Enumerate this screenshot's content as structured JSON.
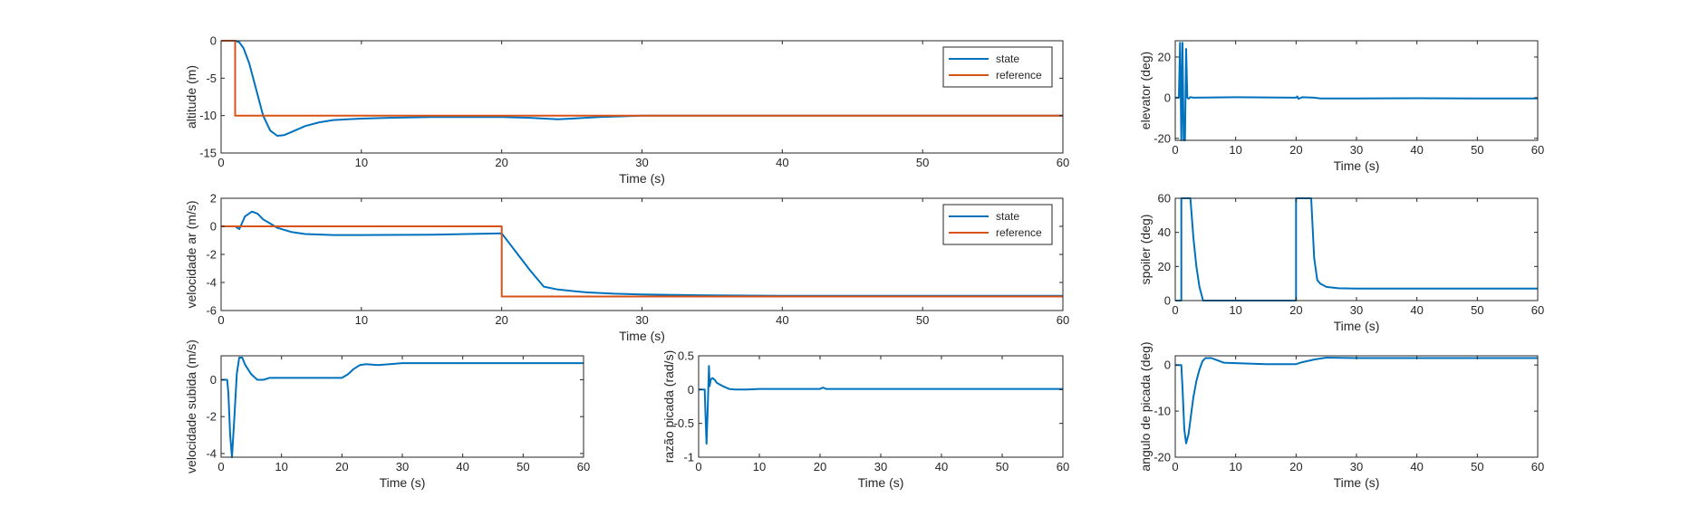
{
  "figure": {
    "background": "#ffffff"
  },
  "colors": {
    "state": "#0072bd",
    "reference": "#d95319",
    "axis": "#262626"
  },
  "chart_data": [
    {
      "id": "altitude",
      "type": "line",
      "xlabel": "Time (s)",
      "ylabel": "altitude (m)",
      "xlim": [
        0,
        60
      ],
      "ylim": [
        -15,
        0
      ],
      "xticks": [
        0,
        10,
        20,
        30,
        40,
        50,
        60
      ],
      "yticks": [
        -15,
        -10,
        -5,
        0
      ],
      "legend": {
        "position": "top-right",
        "entries": [
          "state",
          "reference"
        ]
      },
      "series": [
        {
          "name": "state",
          "color": "#0072bd",
          "x": [
            0,
            1,
            1.3,
            1.6,
            2,
            2.5,
            3,
            3.5,
            4,
            4.5,
            5,
            6,
            7,
            8,
            10,
            12,
            15,
            20,
            22,
            24,
            25,
            27,
            30,
            40,
            60
          ],
          "y": [
            0,
            0,
            -0.2,
            -1,
            -3,
            -6.5,
            -10,
            -12,
            -12.7,
            -12.6,
            -12.2,
            -11.4,
            -10.9,
            -10.6,
            -10.4,
            -10.3,
            -10.2,
            -10.2,
            -10.3,
            -10.5,
            -10.4,
            -10.2,
            -10,
            -10,
            -10
          ]
        },
        {
          "name": "reference",
          "color": "#d95319",
          "x": [
            0,
            1,
            1,
            60
          ],
          "y": [
            0,
            0,
            -10,
            -10
          ]
        }
      ]
    },
    {
      "id": "airspeed",
      "type": "line",
      "xlabel": "Time (s)",
      "ylabel": "velocidade ar (m/s)",
      "xlim": [
        0,
        60
      ],
      "ylim": [
        -6,
        2
      ],
      "xticks": [
        0,
        10,
        20,
        30,
        40,
        50,
        60
      ],
      "yticks": [
        -6,
        -4,
        -2,
        0,
        2
      ],
      "legend": {
        "position": "top-right",
        "entries": [
          "state",
          "reference"
        ]
      },
      "series": [
        {
          "name": "state",
          "color": "#0072bd",
          "x": [
            1,
            1.3,
            1.7,
            2.2,
            2.6,
            3,
            3.5,
            4,
            5,
            6,
            8,
            10,
            15,
            20,
            21,
            22,
            23,
            24,
            26,
            28,
            30,
            35,
            40,
            60
          ],
          "y": [
            0,
            -0.2,
            0.7,
            1.05,
            0.9,
            0.5,
            0.2,
            -0.1,
            -0.4,
            -0.55,
            -0.62,
            -0.62,
            -0.6,
            -0.5,
            -1.8,
            -3.1,
            -4.3,
            -4.5,
            -4.7,
            -4.8,
            -4.85,
            -4.92,
            -4.95,
            -4.95
          ]
        },
        {
          "name": "reference",
          "color": "#d95319",
          "x": [
            0,
            20,
            20,
            60
          ],
          "y": [
            0,
            0,
            -5,
            -5
          ]
        }
      ]
    },
    {
      "id": "climb",
      "type": "line",
      "xlabel": "Time (s)",
      "ylabel": "velocidade subida (m/s)",
      "xlim": [
        0,
        60
      ],
      "ylim": [
        -4.2,
        1.3
      ],
      "xticks": [
        0,
        10,
        20,
        30,
        40,
        50,
        60
      ],
      "yticks": [
        -4,
        -2,
        0
      ],
      "series": [
        {
          "name": "",
          "color": "#0072bd",
          "x": [
            0,
            1,
            1.2,
            1.5,
            1.8,
            2.2,
            2.6,
            3,
            3.5,
            4,
            5,
            6,
            7,
            8,
            10,
            15,
            20,
            21,
            22,
            23,
            24,
            26,
            30,
            60
          ],
          "y": [
            0,
            0,
            -0.7,
            -3,
            -4.2,
            -2,
            0.3,
            1.2,
            1.2,
            0.8,
            0.3,
            0,
            0,
            0.1,
            0.1,
            0.1,
            0.1,
            0.3,
            0.6,
            0.8,
            0.85,
            0.8,
            0.9,
            0.9
          ]
        }
      ]
    },
    {
      "id": "pitchrate",
      "type": "line",
      "xlabel": "Time (s)",
      "ylabel": "razão picada (rad/s)",
      "xlim": [
        0,
        60
      ],
      "ylim": [
        -1,
        0.5
      ],
      "xticks": [
        0,
        10,
        20,
        30,
        40,
        50,
        60
      ],
      "yticks": [
        -1,
        -0.5,
        0,
        0.5
      ],
      "series": [
        {
          "name": "",
          "color": "#0072bd",
          "x": [
            0,
            1,
            1.1,
            1.3,
            1.5,
            1.7,
            1.8,
            2,
            2.3,
            2.7,
            3,
            4,
            5,
            6,
            8,
            10,
            20,
            20.5,
            21,
            30,
            60
          ],
          "y": [
            0,
            0,
            -0.3,
            -0.8,
            -0.3,
            0.35,
            0.05,
            0.15,
            0.17,
            0.14,
            0.1,
            0.05,
            0.01,
            0,
            0,
            0.01,
            0.01,
            0.03,
            0.01,
            0.01,
            0.01
          ]
        }
      ]
    },
    {
      "id": "elevator",
      "type": "line",
      "xlabel": "Time (s)",
      "ylabel": "elevator (deg)",
      "xlim": [
        0,
        60
      ],
      "ylim": [
        -21,
        28
      ],
      "xticks": [
        0,
        10,
        20,
        30,
        40,
        50,
        60
      ],
      "yticks": [
        -20,
        0,
        20
      ],
      "series": [
        {
          "name": "",
          "color": "#0072bd",
          "x": [
            0,
            0.6,
            0.8,
            1,
            1.2,
            1.4,
            1.6,
            1.8,
            2,
            2.2,
            2.5,
            3,
            10,
            20,
            20.2,
            20.4,
            21,
            23,
            24,
            30,
            40,
            50,
            60
          ],
          "y": [
            0,
            0,
            27,
            -21,
            27,
            -21,
            -21,
            24,
            0,
            -0.5,
            0.3,
            0,
            0.2,
            0,
            0.6,
            -0.6,
            0.2,
            0,
            -0.4,
            -0.4,
            -0.3,
            -0.4,
            -0.4
          ]
        }
      ]
    },
    {
      "id": "spoiler",
      "type": "line",
      "xlabel": "Time (s)",
      "ylabel": "spoiler (deg)",
      "xlim": [
        0,
        60
      ],
      "ylim": [
        0,
        60
      ],
      "xticks": [
        0,
        10,
        20,
        30,
        40,
        50,
        60
      ],
      "yticks": [
        0,
        20,
        40,
        60
      ],
      "series": [
        {
          "name": "",
          "color": "#0072bd",
          "x": [
            0,
            1,
            1,
            2.5,
            3,
            3.5,
            4,
            4.6,
            20,
            20,
            22.5,
            23,
            23.5,
            24,
            25,
            27,
            30,
            35,
            60
          ],
          "y": [
            0,
            0,
            60,
            60,
            37,
            20,
            8,
            0,
            0,
            60,
            60,
            25,
            12,
            10,
            8,
            7.2,
            7,
            7,
            7
          ]
        }
      ]
    },
    {
      "id": "pitchangle",
      "type": "line",
      "xlabel": "Time (s)",
      "ylabel": "angulo de picada (deg)",
      "xlim": [
        0,
        60
      ],
      "ylim": [
        -20,
        2
      ],
      "xticks": [
        0,
        10,
        20,
        30,
        40,
        50,
        60
      ],
      "yticks": [
        -20,
        -10,
        0
      ],
      "series": [
        {
          "name": "",
          "color": "#0072bd",
          "x": [
            0,
            1,
            1.2,
            1.5,
            1.8,
            2.2,
            2.6,
            3,
            3.5,
            4,
            4.5,
            5,
            6,
            7,
            8,
            10,
            15,
            20,
            21,
            23,
            25,
            30,
            60
          ],
          "y": [
            0,
            0,
            -5,
            -14,
            -17,
            -15,
            -11,
            -7,
            -3.5,
            -1,
            0.8,
            1.5,
            1.5,
            1,
            0.5,
            0.4,
            0.2,
            0.2,
            0.6,
            1.2,
            1.6,
            1.5,
            1.5
          ]
        }
      ]
    }
  ]
}
